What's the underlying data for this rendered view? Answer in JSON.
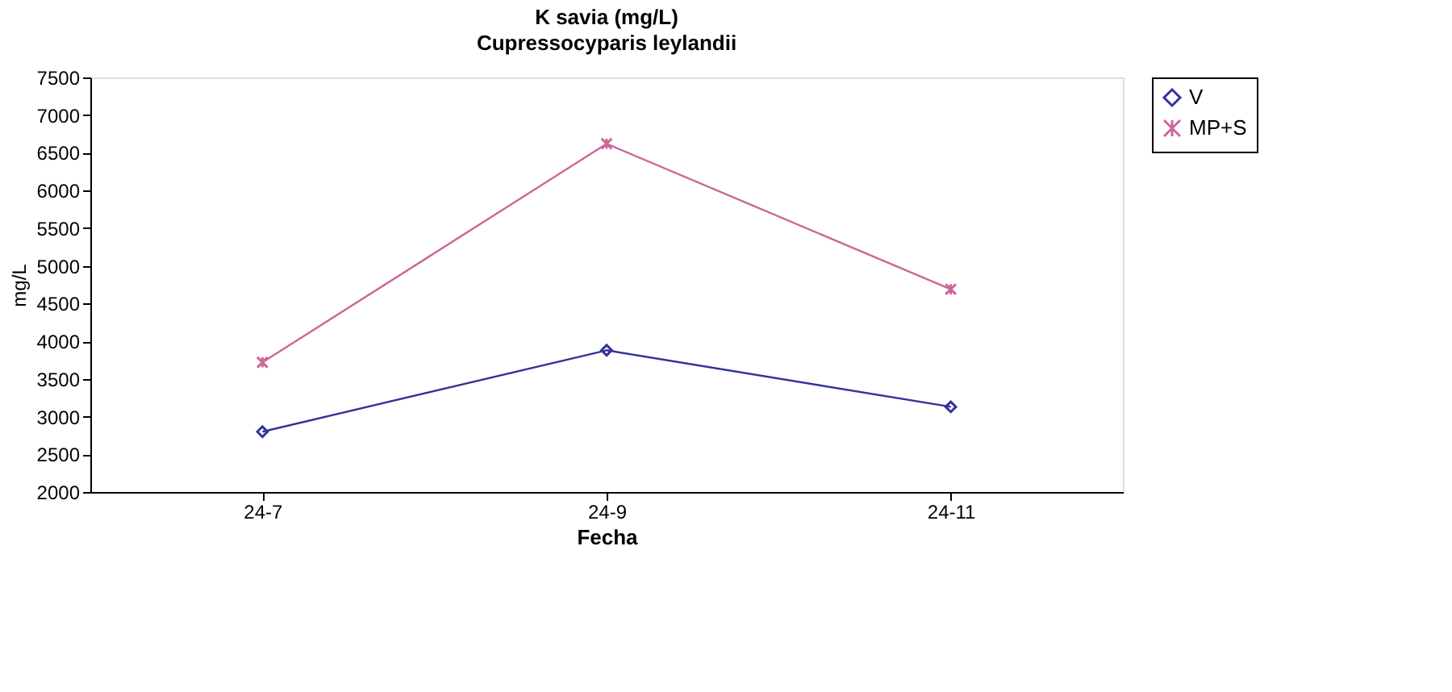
{
  "chart_data": {
    "type": "line",
    "title": "K savia (mg/L)",
    "subtitle": "Cupressocyparis leylandii",
    "xlabel": "Fecha",
    "ylabel": "mg/L",
    "categories": [
      "24-7",
      "24-9",
      "24-11"
    ],
    "series": [
      {
        "name": "V",
        "color": "#333399",
        "marker": "diamond",
        "values": [
          2800,
          3880,
          3130
        ]
      },
      {
        "name": "MP+S",
        "color": "#cc6699",
        "marker": "cross",
        "values": [
          3720,
          6620,
          4690
        ]
      }
    ],
    "ylim": [
      2000,
      7500
    ],
    "yticks": [
      2000,
      2500,
      3000,
      3500,
      4000,
      4500,
      5000,
      5500,
      6000,
      6500,
      7000,
      7500
    ],
    "grid": false,
    "legend": "right",
    "line_style": "solid"
  }
}
